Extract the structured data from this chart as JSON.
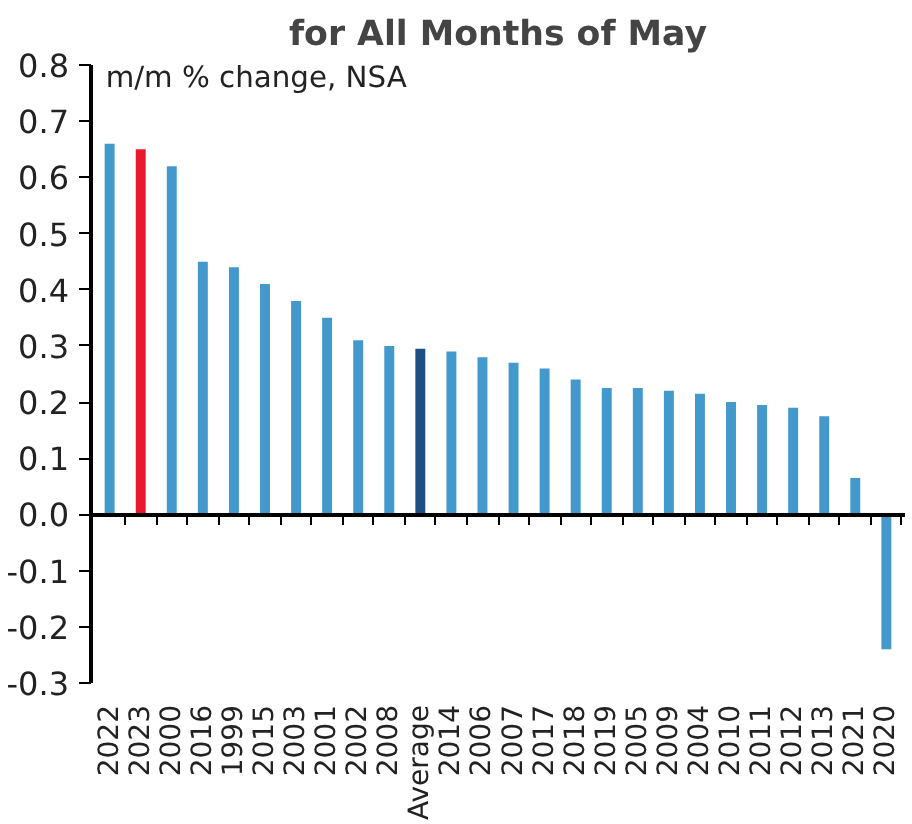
{
  "chart_data": {
    "type": "bar",
    "title": "for All Months of May",
    "subtitle": "m/m % change, NSA",
    "categories": [
      "2022",
      "2023",
      "2000",
      "2016",
      "1999",
      "2015",
      "2003",
      "2001",
      "2002",
      "2008",
      "Average",
      "2014",
      "2006",
      "2007",
      "2017",
      "2018",
      "2019",
      "2005",
      "2009",
      "2004",
      "2010",
      "2011",
      "2012",
      "2013",
      "2021",
      "2020"
    ],
    "values": [
      0.66,
      0.65,
      0.62,
      0.45,
      0.44,
      0.41,
      0.38,
      0.35,
      0.31,
      0.3,
      0.295,
      0.29,
      0.28,
      0.27,
      0.26,
      0.24,
      0.225,
      0.225,
      0.22,
      0.215,
      0.2,
      0.195,
      0.19,
      0.175,
      0.065,
      -0.24
    ],
    "colors": [
      "#4499cc",
      "#e8192c",
      "#4499cc",
      "#4499cc",
      "#4499cc",
      "#4499cc",
      "#4499cc",
      "#4499cc",
      "#4499cc",
      "#4499cc",
      "#1f4e80",
      "#4499cc",
      "#4499cc",
      "#4499cc",
      "#4499cc",
      "#4499cc",
      "#4499cc",
      "#4499cc",
      "#4499cc",
      "#4499cc",
      "#4499cc",
      "#4499cc",
      "#4499cc",
      "#4499cc",
      "#4499cc",
      "#4499cc"
    ],
    "ylim": [
      -0.3,
      0.8
    ],
    "yticks": [
      {
        "value": -0.3,
        "label": "-0.3"
      },
      {
        "value": -0.2,
        "label": "-0.2"
      },
      {
        "value": -0.1,
        "label": "-0.1"
      },
      {
        "value": 0,
        "label": "0.0"
      },
      {
        "value": 0.1,
        "label": "0.1"
      },
      {
        "value": 0.2,
        "label": "0.2"
      },
      {
        "value": 0.3,
        "label": "0.3"
      },
      {
        "value": 0.4,
        "label": "0.4"
      },
      {
        "value": 0.5,
        "label": "0.5"
      },
      {
        "value": 0.6,
        "label": "0.6"
      },
      {
        "value": 0.7,
        "label": "0.7"
      },
      {
        "value": 0.8,
        "label": "0.8"
      }
    ]
  }
}
